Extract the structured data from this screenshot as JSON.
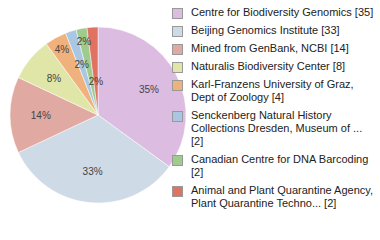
{
  "chart_data": {
    "type": "pie",
    "categories": [
      "Centre for Biodiversity Genomics [35]",
      "Beijing Genomics Institute [33]",
      "Mined from GenBank, NCBI [14]",
      "Naturalis Biodiversity Center [8]",
      "Karl-Franzens University of Graz, Dept of Zoology [4]",
      "Senckenberg Natural History Collections Dresden, Museum of ... [2]",
      "Canadian Centre for DNA Barcoding [2]",
      "Animal and Plant Quarantine Agency, Plant Quarantine Techno... [2]"
    ],
    "values": [
      35,
      33,
      14,
      8,
      4,
      2,
      2,
      2
    ],
    "value_labels": [
      "35%",
      "33%",
      "14%",
      "8%",
      "4%",
      "2%",
      "2%",
      "2%"
    ],
    "colors": [
      "#dcbce0",
      "#cfdae7",
      "#e0a9a1",
      "#dfe6a8",
      "#f0b27c",
      "#a9c6e2",
      "#9fcb8c",
      "#df7260"
    ],
    "data_labels": true,
    "legend": "right"
  }
}
